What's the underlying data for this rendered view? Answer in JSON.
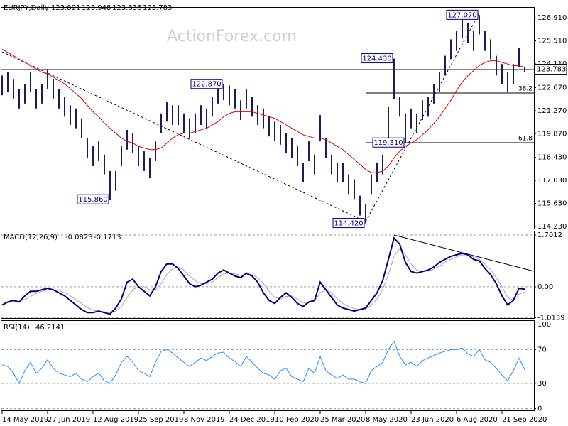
{
  "symbol": "EURJPY,Daily",
  "ohlc": [
    123.891,
    123.948,
    123.636,
    123.783
  ],
  "watermark": "ActionForex.com",
  "chart_data": [
    {
      "type": "hilo",
      "color": "#1c1c5a",
      "ma_color": "#e00000",
      "categories": [
        "14 May 2019",
        null,
        null,
        null,
        null,
        null,
        null,
        null,
        "27 Jun 2019",
        null,
        null,
        null,
        null,
        null,
        null,
        null,
        "12 Aug 2019",
        null,
        null,
        null,
        null,
        null,
        null,
        null,
        "25 Sep 2019",
        null,
        null,
        null,
        null,
        null,
        null,
        null,
        "8 Nov 2019",
        null,
        null,
        null,
        null,
        null,
        null,
        null,
        "24 Dec 2019",
        null,
        null,
        null,
        null,
        null,
        null,
        null,
        "10 Feb 2020",
        null,
        null,
        null,
        null,
        null,
        null,
        null,
        "25 Mar 2020",
        null,
        null,
        null,
        null,
        null,
        null,
        null,
        "8 May 2020",
        null,
        null,
        null,
        null,
        null,
        null,
        null,
        "23 Jun 2020",
        null,
        null,
        null,
        null,
        null,
        null,
        null,
        "6 Aug 2020",
        null,
        null,
        null,
        null,
        null,
        null,
        null,
        "21 Sep 2020",
        null,
        null,
        null,
        null
      ],
      "high": [
        123.4,
        123.6,
        123.2,
        122.6,
        122.9,
        123.6,
        122.6,
        122.9,
        123.8,
        123.2,
        122.6,
        122.1,
        121.6,
        121.4,
        120.8,
        119.6,
        119.1,
        119.4,
        118.6,
        117.6,
        117.6,
        119.1,
        120.1,
        119.9,
        119.1,
        118.8,
        118.4,
        119.4,
        121.1,
        121.8,
        121.6,
        121.6,
        121.1,
        120.8,
        121.1,
        121.6,
        121.4,
        122.1,
        122.8,
        122.87,
        122.8,
        122.6,
        121.9,
        122.6,
        122.1,
        121.6,
        121.4,
        120.9,
        120.6,
        120.4,
        119.9,
        119.6,
        119.1,
        118.1,
        119.4,
        118.6,
        121.0,
        119.6,
        118.6,
        118.1,
        118.1,
        117.4,
        117.1,
        116.1,
        115.6,
        117.4,
        118.1,
        118.6,
        121.5,
        124.43,
        122.1,
        121.1,
        121.4,
        121.1,
        121.9,
        122.1,
        122.9,
        123.6,
        124.6,
        125.6,
        126.1,
        126.9,
        126.6,
        126.1,
        127.07,
        126.1,
        125.6,
        124.6,
        124.1,
        123.6,
        124.1,
        125.1,
        123.948
      ],
      "low": [
        122.2,
        122.4,
        122.0,
        121.4,
        121.7,
        122.4,
        121.4,
        121.7,
        122.6,
        122.0,
        121.4,
        120.9,
        120.4,
        120.2,
        119.6,
        118.4,
        117.9,
        118.2,
        117.4,
        115.86,
        116.4,
        117.9,
        118.9,
        118.7,
        117.9,
        117.6,
        117.2,
        118.2,
        119.9,
        120.6,
        120.4,
        120.4,
        119.9,
        119.6,
        119.9,
        120.4,
        120.2,
        120.9,
        121.7,
        121.9,
        121.6,
        121.4,
        120.7,
        121.4,
        120.9,
        120.4,
        120.2,
        119.7,
        119.4,
        119.2,
        118.7,
        118.4,
        117.9,
        116.9,
        118.2,
        117.4,
        119.4,
        118.4,
        117.4,
        116.9,
        116.9,
        116.2,
        115.9,
        114.9,
        114.42,
        116.2,
        116.9,
        117.4,
        119.5,
        122.0,
        120.9,
        119.31,
        120.2,
        119.9,
        120.7,
        120.9,
        121.7,
        122.4,
        123.4,
        124.4,
        124.9,
        125.7,
        125.4,
        124.9,
        125.9,
        124.9,
        124.4,
        123.4,
        122.9,
        122.4,
        122.9,
        123.9,
        123.636
      ],
      "ma": [
        125.0,
        124.8,
        124.6,
        124.4,
        124.2,
        124.0,
        123.8,
        123.6,
        123.5,
        123.3,
        123.1,
        122.9,
        122.6,
        122.3,
        122.0,
        121.6,
        121.2,
        120.9,
        120.5,
        120.2,
        119.9,
        119.6,
        119.4,
        119.3,
        119.1,
        119.0,
        118.9,
        118.9,
        119.0,
        119.3,
        119.6,
        119.8,
        119.9,
        119.9,
        120.0,
        120.1,
        120.2,
        120.4,
        120.6,
        120.9,
        121.1,
        121.2,
        121.2,
        121.2,
        121.2,
        121.1,
        121.0,
        120.9,
        120.8,
        120.6,
        120.4,
        120.2,
        120.0,
        119.8,
        119.7,
        119.6,
        119.6,
        119.5,
        119.3,
        119.1,
        118.9,
        118.6,
        118.3,
        118.0,
        117.7,
        117.5,
        117.5,
        117.6,
        117.9,
        118.4,
        118.8,
        119.1,
        119.3,
        119.5,
        119.8,
        120.1,
        120.5,
        120.9,
        121.4,
        121.9,
        122.5,
        123.0,
        123.4,
        123.7,
        124.0,
        124.2,
        124.3,
        124.3,
        124.2,
        124.1,
        124.0,
        124.0,
        123.9
      ],
      "ylim": [
        114.1,
        127.56
      ],
      "yticks": [
        {
          "value": 126.91,
          "label": "126.910"
        },
        {
          "value": 125.51,
          "label": "125.510"
        },
        {
          "value": 124.11,
          "label": "124.110"
        },
        {
          "value": 122.67,
          "label": "122.670"
        },
        {
          "value": 121.27,
          "label": "121.270"
        },
        {
          "value": 119.87,
          "label": "119.870"
        },
        {
          "value": 118.43,
          "label": "118.430"
        },
        {
          "value": 117.03,
          "label": "117.030"
        },
        {
          "value": 115.63,
          "label": "115.630"
        },
        {
          "value": 114.23,
          "label": "114.230"
        }
      ],
      "levels": [
        {
          "label": "38.2",
          "value": 122.34,
          "from": 64
        },
        {
          "label": "61.8",
          "value": 119.32,
          "from": 64
        }
      ],
      "trendlines": [
        [
          [
            0,
            124.84
          ],
          [
            64,
            114.53
          ]
        ],
        [
          [
            64,
            114.53
          ],
          [
            84,
            127.2
          ]
        ]
      ],
      "annotations": [
        {
          "label": "115.860",
          "value": 115.86,
          "index": 19
        },
        {
          "label": "122.870",
          "value": 122.87,
          "index": 39
        },
        {
          "label": "114.420",
          "value": 114.42,
          "index": 64
        },
        {
          "label": "124.430",
          "value": 124.43,
          "index": 69
        },
        {
          "label": "119.310",
          "value": 119.31,
          "index": 71
        },
        {
          "label": "127.070",
          "value": 127.07,
          "index": 84
        }
      ]
    },
    {
      "type": "macd",
      "title": "MACD(12,26,9)",
      "series": [
        {
          "color": "#000080",
          "values": [
            -0.6,
            -0.5,
            -0.45,
            -0.5,
            -0.3,
            -0.15,
            -0.15,
            -0.1,
            -0.05,
            -0.1,
            -0.2,
            -0.3,
            -0.45,
            -0.6,
            -0.75,
            -0.85,
            -0.85,
            -0.8,
            -0.85,
            -0.9,
            -0.7,
            -0.4,
            0.15,
            0.25,
            0.0,
            -0.15,
            -0.3,
            0.0,
            0.5,
            0.75,
            0.75,
            0.6,
            0.35,
            0.1,
            0.0,
            0.05,
            0.15,
            0.25,
            0.45,
            0.55,
            0.45,
            0.35,
            0.3,
            0.45,
            0.35,
            0.15,
            -0.2,
            -0.45,
            -0.55,
            -0.35,
            -0.2,
            -0.35,
            -0.55,
            -0.65,
            -0.5,
            -0.45,
            0.15,
            -0.1,
            -0.35,
            -0.6,
            -0.7,
            -0.75,
            -0.8,
            -0.75,
            -0.7,
            -0.45,
            -0.2,
            0.2,
            0.9,
            1.6,
            1.4,
            0.8,
            0.5,
            0.45,
            0.5,
            0.55,
            0.65,
            0.8,
            0.9,
            1.0,
            1.05,
            1.1,
            1.05,
            0.9,
            0.85,
            0.6,
            0.4,
            0.1,
            -0.3,
            -0.6,
            -0.45,
            -0.05,
            -0.0823
          ]
        },
        {
          "color": "#a8a8a8",
          "values": [
            -0.5,
            -0.52,
            -0.5,
            -0.48,
            -0.42,
            -0.32,
            -0.22,
            -0.15,
            -0.1,
            -0.1,
            -0.12,
            -0.2,
            -0.3,
            -0.42,
            -0.55,
            -0.68,
            -0.77,
            -0.8,
            -0.82,
            -0.85,
            -0.8,
            -0.65,
            -0.35,
            -0.1,
            0.0,
            0.0,
            -0.1,
            -0.1,
            0.1,
            0.4,
            0.6,
            0.65,
            0.55,
            0.35,
            0.2,
            0.1,
            0.1,
            0.15,
            0.3,
            0.42,
            0.45,
            0.42,
            0.38,
            0.4,
            0.4,
            0.3,
            0.1,
            -0.15,
            -0.35,
            -0.4,
            -0.32,
            -0.3,
            -0.4,
            -0.52,
            -0.52,
            -0.48,
            -0.2,
            -0.1,
            -0.2,
            -0.4,
            -0.55,
            -0.65,
            -0.72,
            -0.75,
            -0.73,
            -0.6,
            -0.4,
            -0.1,
            0.4,
            1.0,
            1.25,
            1.05,
            0.75,
            0.55,
            0.5,
            0.52,
            0.58,
            0.68,
            0.8,
            0.9,
            0.98,
            1.05,
            1.05,
            0.98,
            0.9,
            0.75,
            0.55,
            0.3,
            0.0,
            -0.35,
            -0.45,
            -0.25,
            -0.1713
          ]
        }
      ],
      "ylim": [
        -1.03,
        1.84
      ],
      "yticks": [
        1.7012,
        {
          "value": 0,
          "label": "0.00"
        },
        -1.0139
      ],
      "grid": true,
      "trendlines": [
        [
          [
            69,
            1.7
          ],
          [
            93.6,
            0.51
          ]
        ]
      ]
    },
    {
      "type": "line",
      "title": "RSI(14)",
      "series": [
        {
          "color": "#1e90ff",
          "values": [
            52,
            50,
            42,
            30,
            45,
            55,
            42,
            48,
            58,
            48,
            42,
            40,
            38,
            42,
            35,
            32,
            38,
            42,
            33,
            30,
            40,
            55,
            62,
            55,
            45,
            42,
            38,
            55,
            68,
            70,
            66,
            60,
            55,
            50,
            55,
            60,
            57,
            62,
            66,
            67,
            60,
            56,
            50,
            62,
            55,
            48,
            42,
            40,
            35,
            45,
            48,
            38,
            35,
            32,
            48,
            42,
            62,
            45,
            40,
            36,
            40,
            35,
            35,
            32,
            30,
            45,
            50,
            55,
            70,
            80,
            62,
            52,
            55,
            50,
            57,
            60,
            63,
            66,
            68,
            70,
            70,
            72,
            65,
            62,
            70,
            58,
            55,
            48,
            40,
            33,
            45,
            60,
            46.2141
          ]
        }
      ],
      "ylim": [
        -2,
        104
      ],
      "yticks": [
        100,
        70,
        30,
        0
      ],
      "grid": true
    }
  ]
}
